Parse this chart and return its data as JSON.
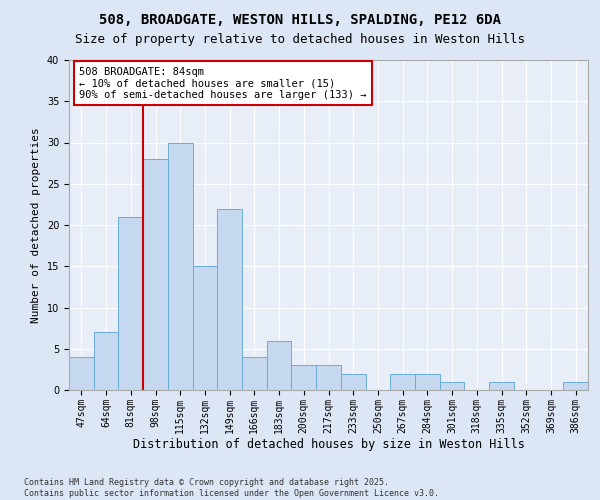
{
  "title1": "508, BROADGATE, WESTON HILLS, SPALDING, PE12 6DA",
  "title2": "Size of property relative to detached houses in Weston Hills",
  "xlabel": "Distribution of detached houses by size in Weston Hills",
  "ylabel": "Number of detached properties",
  "footnote": "Contains HM Land Registry data © Crown copyright and database right 2025.\nContains public sector information licensed under the Open Government Licence v3.0.",
  "categories": [
    "47sqm",
    "64sqm",
    "81sqm",
    "98sqm",
    "115sqm",
    "132sqm",
    "149sqm",
    "166sqm",
    "183sqm",
    "200sqm",
    "217sqm",
    "233sqm",
    "250sqm",
    "267sqm",
    "284sqm",
    "301sqm",
    "318sqm",
    "335sqm",
    "352sqm",
    "369sqm",
    "386sqm"
  ],
  "values": [
    4,
    7,
    21,
    28,
    30,
    15,
    22,
    4,
    6,
    3,
    3,
    2,
    0,
    2,
    2,
    1,
    0,
    1,
    0,
    0,
    1
  ],
  "bar_color": "#c5d8f0",
  "bar_edge_color": "#6aacd6",
  "vline_color": "#cc0000",
  "vline_pos": 2.5,
  "annotation_text": "508 BROADGATE: 84sqm\n← 10% of detached houses are smaller (15)\n90% of semi-detached houses are larger (133) →",
  "annotation_box_color": "#ffffff",
  "annotation_box_edge": "#cc0000",
  "ylim": [
    0,
    40
  ],
  "yticks": [
    0,
    5,
    10,
    15,
    20,
    25,
    30,
    35,
    40
  ],
  "bg_color": "#dce6f5",
  "plot_bg_color": "#e8eef8",
  "grid_color": "#ffffff",
  "title_fontsize": 10,
  "subtitle_fontsize": 9,
  "tick_fontsize": 7,
  "ylabel_fontsize": 8,
  "xlabel_fontsize": 8.5,
  "footnote_fontsize": 6,
  "annot_fontsize": 7.5
}
